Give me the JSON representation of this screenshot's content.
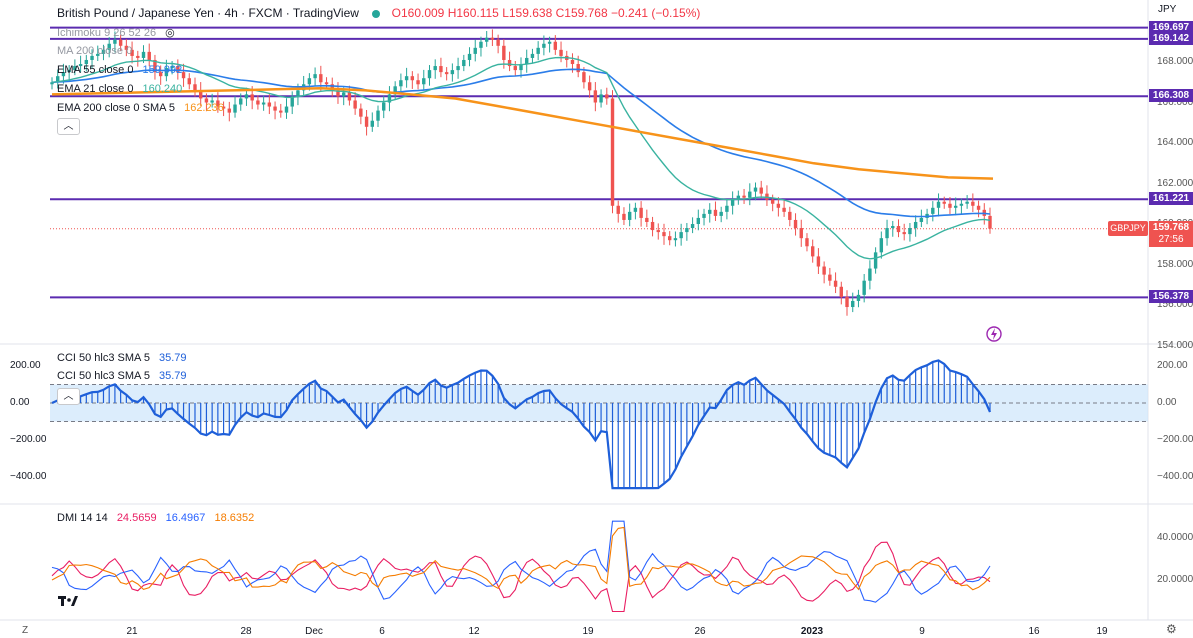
{
  "header": {
    "symbol_title": "British Pound / Japanese Yen · 4h · FXCM · TradingView",
    "open": "O160.009",
    "high": "H160.115",
    "low": "L159.638",
    "close": "C159.768",
    "change": "−0.241 (−0.15%)",
    "currency": "JPY"
  },
  "indicators": {
    "ichimoku": "Ichimoku 9 26 52 26",
    "ma200": "MA 200 close 0",
    "ema55": {
      "label": "EMA 55 close 0",
      "value": "159.992"
    },
    "ema21": {
      "label": "EMA 21 close 0",
      "value": "160.240"
    },
    "ema200": {
      "label": "EMA 200 close 0 SMA 5",
      "value": "162.236"
    }
  },
  "cci": {
    "label1": "CCI 50 hlc3 SMA 5",
    "value1": "35.79",
    "label2": "CCI 50 hlc3 SMA 5",
    "value2": "35.79",
    "ticks": [
      "200.00",
      "0.00",
      "−200.00",
      "−400.00"
    ]
  },
  "dmi": {
    "label": "DMI 14 14",
    "plus": "24.5659",
    "minus": "16.4967",
    "adx": "18.6352",
    "ticks": [
      "40.0000",
      "20.0000"
    ]
  },
  "price_axis": {
    "ticks": [
      "168.000",
      "166.000",
      "164.000",
      "162.000",
      "160.000",
      "158.000",
      "156.000",
      "154.000"
    ]
  },
  "levels": [
    {
      "label": "169.697",
      "value": 169.697
    },
    {
      "label": "169.142",
      "value": 169.142
    },
    {
      "label": "166.308",
      "value": 166.308
    },
    {
      "label": "161.221",
      "value": 161.221
    },
    {
      "label": "156.378",
      "value": 156.378
    }
  ],
  "last_price": {
    "symbol": "GBPJPY",
    "price": "159.768",
    "countdown": "27:56"
  },
  "time_axis": [
    "21",
    "28",
    "Dec",
    "6",
    "12",
    "19",
    "26",
    "2023",
    "9",
    "16",
    "19"
  ],
  "corner_z": "Z",
  "colors": {
    "up": "#26a69a",
    "down": "#ef5350",
    "level": "#5b2bb0",
    "ema55": "#2b7de9",
    "ema21": "#3ab3a0",
    "ema200": "#f7931a",
    "cci": "#1e5fd9",
    "cci_fill": "#cde5fb",
    "di_plus": "#e91e63",
    "di_minus": "#2962ff",
    "adx": "#f57c00"
  },
  "chart_data": {
    "type": "candlestick",
    "symbol": "GBPJPY",
    "timeframe": "4h",
    "candles_close_estimated": [
      167.0,
      167.3,
      167.5,
      167.6,
      167.8,
      167.9,
      168.1,
      168.3,
      168.4,
      168.6,
      168.9,
      169.1,
      168.8,
      168.6,
      168.3,
      168.2,
      168.5,
      168.1,
      167.5,
      167.3,
      167.7,
      167.8,
      167.5,
      167.2,
      166.9,
      166.6,
      166.2,
      166.0,
      166.1,
      165.8,
      165.7,
      165.5,
      165.9,
      166.2,
      166.4,
      166.1,
      165.9,
      166.0,
      165.8,
      165.6,
      165.5,
      165.8,
      166.3,
      166.6,
      166.9,
      167.2,
      167.4,
      167.0,
      166.9,
      166.6,
      166.3,
      166.5,
      166.1,
      165.7,
      165.3,
      164.8,
      165.1,
      165.6,
      166.0,
      166.4,
      166.8,
      167.1,
      167.3,
      167.1,
      166.9,
      167.2,
      167.6,
      167.8,
      167.5,
      167.4,
      167.6,
      167.8,
      168.1,
      168.4,
      168.7,
      169.0,
      169.2,
      169.1,
      168.8,
      168.1,
      167.8,
      167.6,
      167.9,
      168.2,
      168.4,
      168.7,
      168.9,
      169.0,
      168.6,
      168.3,
      168.1,
      167.9,
      167.5,
      167.0,
      166.6,
      166.0,
      166.4,
      166.2,
      160.9,
      160.5,
      160.2,
      160.6,
      160.8,
      160.3,
      160.1,
      159.7,
      159.6,
      159.4,
      159.2,
      159.3,
      159.6,
      159.8,
      160.0,
      160.3,
      160.5,
      160.7,
      160.4,
      160.6,
      160.9,
      161.2,
      161.4,
      161.3,
      161.6,
      161.8,
      161.5,
      161.2,
      161.0,
      160.8,
      160.6,
      160.2,
      159.8,
      159.3,
      158.9,
      158.4,
      157.9,
      157.5,
      157.2,
      156.9,
      156.4,
      155.9,
      156.2,
      156.5,
      157.2,
      157.8,
      158.6,
      159.3,
      159.8,
      159.9,
      159.6,
      159.5,
      159.8,
      160.1,
      160.3,
      160.5,
      160.8,
      161.1,
      161.0,
      160.8,
      160.9,
      161.0,
      161.1,
      160.9,
      160.7,
      160.4,
      159.77
    ],
    "ema200_estimated": [
      166.4,
      166.45,
      166.5,
      166.55,
      166.6,
      166.65,
      166.7,
      166.6,
      166.4,
      166.2,
      165.8,
      165.4,
      165.0,
      164.6,
      164.2,
      163.8,
      163.4,
      163.0,
      162.7,
      162.5,
      162.3,
      162.24
    ],
    "cci_range": [
      -460,
      230
    ],
    "dmi_range": [
      0,
      55
    ]
  }
}
